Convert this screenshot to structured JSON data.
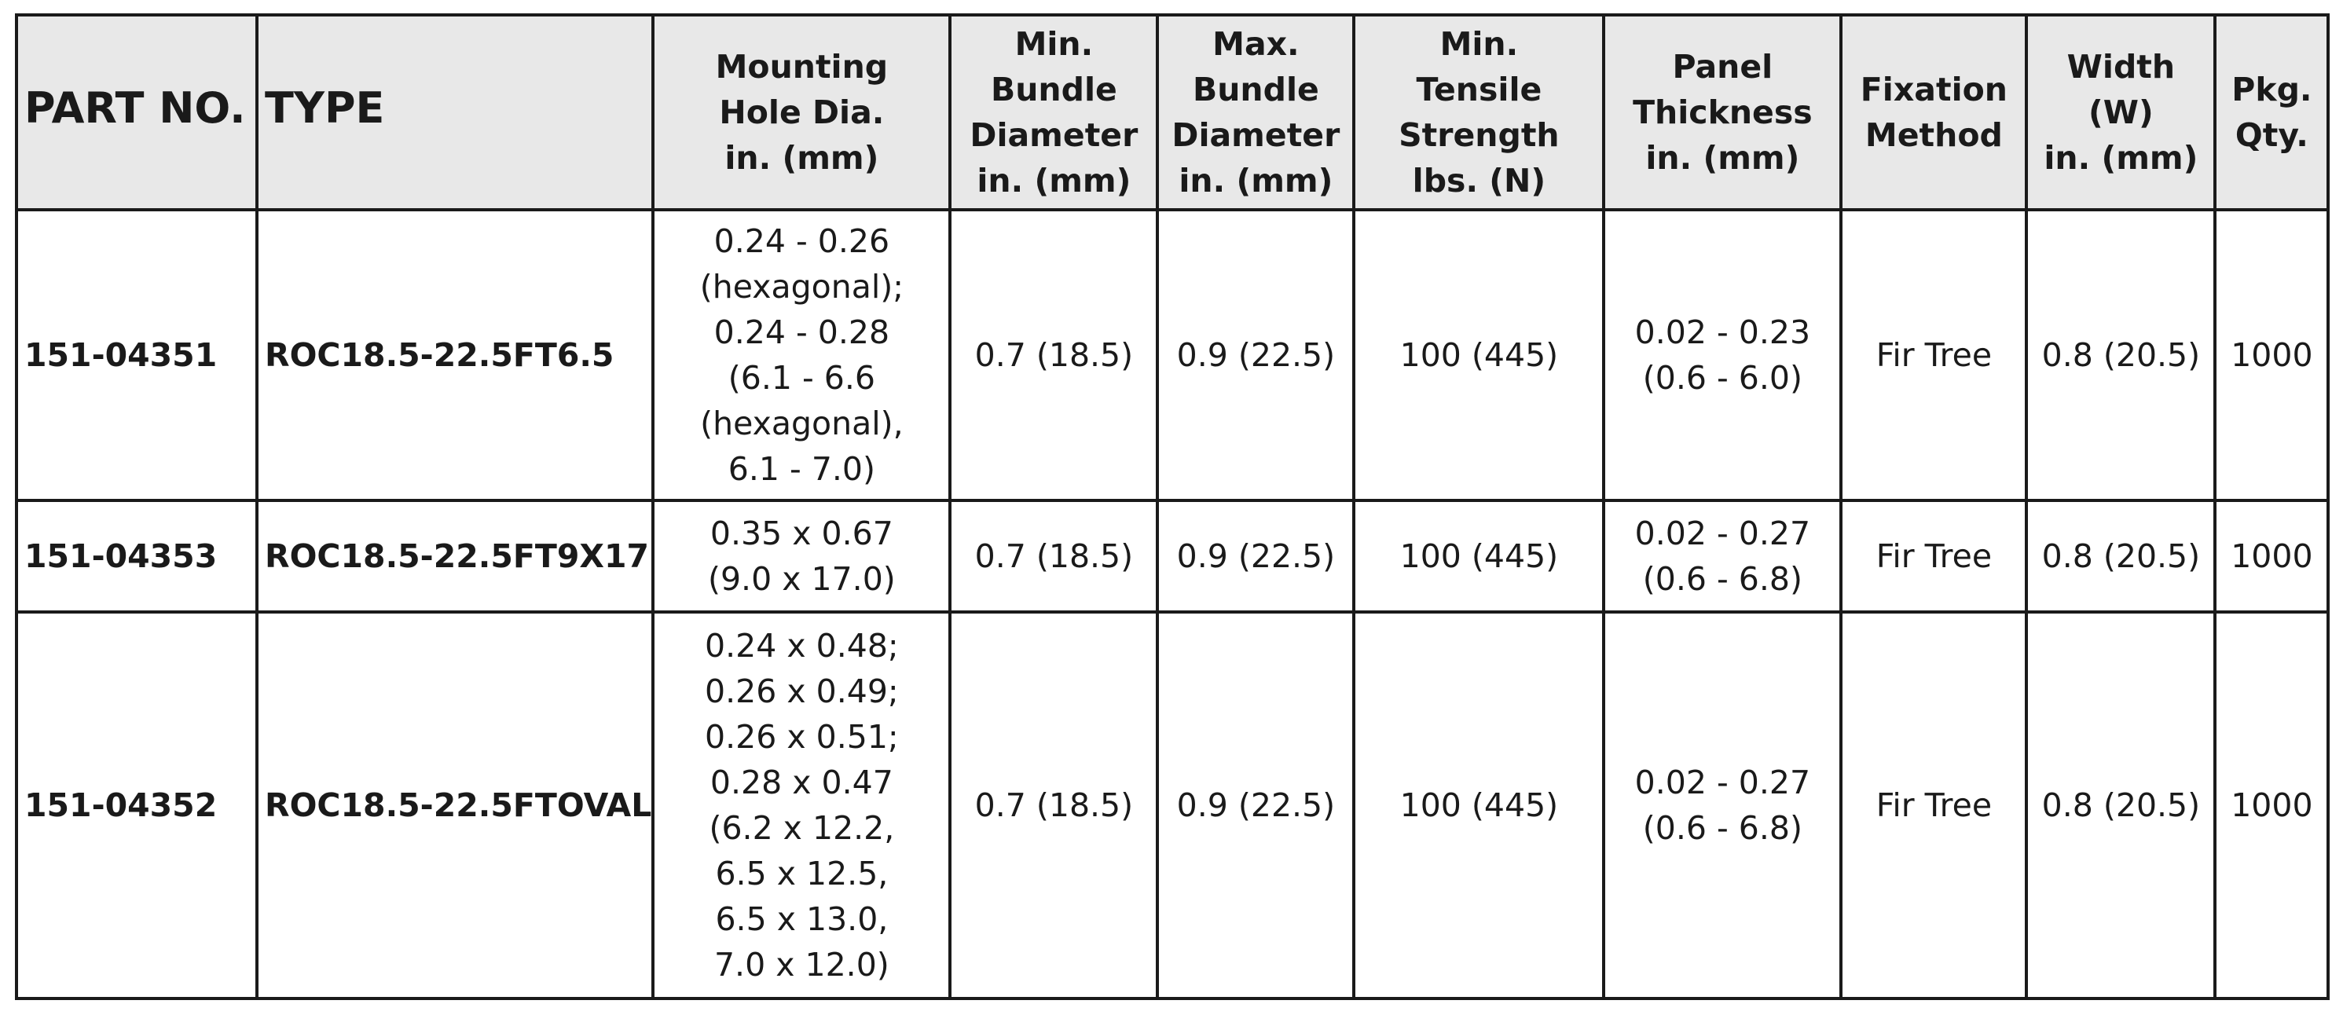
{
  "table": {
    "headers": [
      {
        "key": "part_no",
        "lines": [
          "PART NO."
        ]
      },
      {
        "key": "type",
        "lines": [
          "TYPE"
        ]
      },
      {
        "key": "mounting_hole",
        "lines": [
          "Mounting",
          "Hole Dia.",
          "in. (mm)"
        ]
      },
      {
        "key": "min_bundle",
        "lines": [
          "Min.",
          "Bundle",
          "Diameter",
          "in. (mm)"
        ]
      },
      {
        "key": "max_bundle",
        "lines": [
          "Max.",
          "Bundle",
          "Diameter",
          "in. (mm)"
        ]
      },
      {
        "key": "min_tensile",
        "lines": [
          "Min.",
          "Tensile",
          "Strength",
          "lbs. (N)"
        ]
      },
      {
        "key": "panel_thickness",
        "lines": [
          "Panel",
          "Thickness",
          "in. (mm)"
        ]
      },
      {
        "key": "fixation",
        "lines": [
          "Fixation",
          "Method"
        ]
      },
      {
        "key": "width",
        "lines": [
          "Width",
          "(W)",
          "in. (mm)"
        ]
      },
      {
        "key": "pkg_qty",
        "lines": [
          "Pkg.",
          "Qty."
        ]
      }
    ],
    "rows": [
      {
        "part_no": "151-04351",
        "type": "ROC18.5-22.5FT6.5",
        "mounting_hole": [
          "0.24 - 0.26",
          "(hexagonal);",
          "0.24 - 0.28",
          "(6.1 - 6.6",
          "(hexagonal),",
          "6.1 - 7.0)"
        ],
        "min_bundle": "0.7 (18.5)",
        "max_bundle": "0.9 (22.5)",
        "min_tensile": "100 (445)",
        "panel_thickness": [
          "0.02 - 0.23",
          "(0.6 - 6.0)"
        ],
        "fixation": "Fir Tree",
        "width": "0.8 (20.5)",
        "pkg_qty": "1000"
      },
      {
        "part_no": "151-04353",
        "type": "ROC18.5-22.5FT9X17",
        "mounting_hole": [
          "0.35 x 0.67",
          "(9.0 x 17.0)"
        ],
        "min_bundle": "0.7 (18.5)",
        "max_bundle": "0.9 (22.5)",
        "min_tensile": "100 (445)",
        "panel_thickness": [
          "0.02 - 0.27",
          "(0.6 - 6.8)"
        ],
        "fixation": "Fir Tree",
        "width": "0.8 (20.5)",
        "pkg_qty": "1000"
      },
      {
        "part_no": "151-04352",
        "type": "ROC18.5-22.5FTOVAL",
        "mounting_hole": [
          "0.24 x 0.48;",
          "0.26 x 0.49;",
          "0.26 x 0.51;",
          "0.28 x 0.47",
          "(6.2 x 12.2,",
          "6.5 x 12.5,",
          "6.5 x 13.0,",
          "7.0 x 12.0)"
        ],
        "min_bundle": "0.7 (18.5)",
        "max_bundle": "0.9 (22.5)",
        "min_tensile": "100 (445)",
        "panel_thickness": [
          "0.02 - 0.27",
          "(0.6 - 6.8)"
        ],
        "fixation": "Fir Tree",
        "width": "0.8 (20.5)",
        "pkg_qty": "1000"
      }
    ]
  }
}
